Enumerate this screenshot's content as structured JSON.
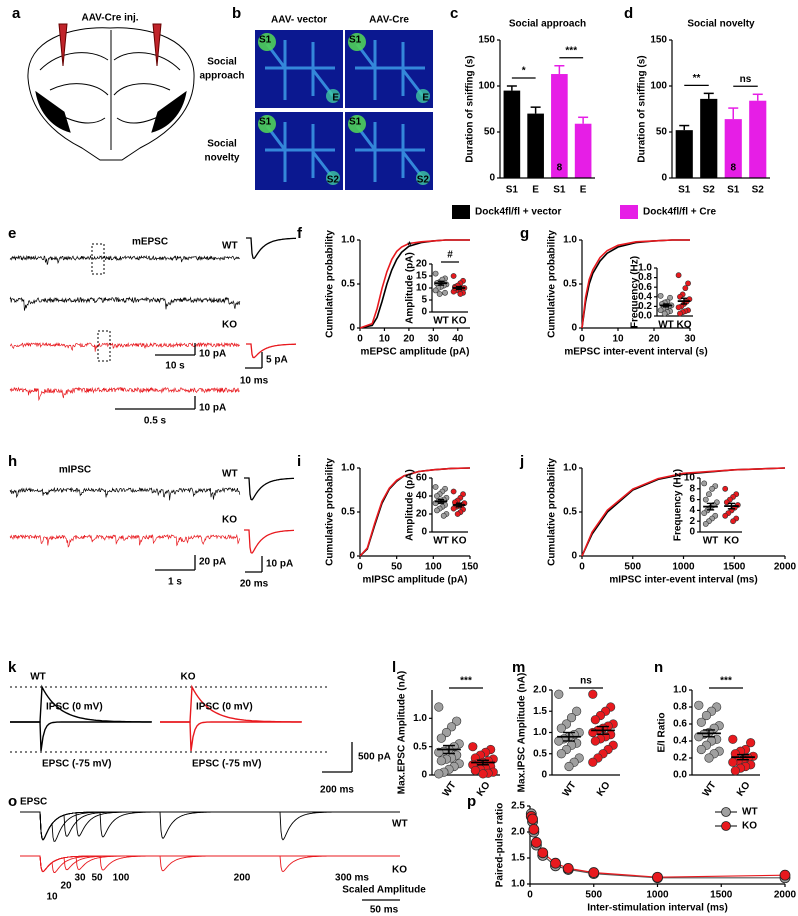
{
  "panel_labels": [
    "a",
    "b",
    "c",
    "d",
    "e",
    "f",
    "g",
    "h",
    "i",
    "j",
    "k",
    "l",
    "m",
    "n",
    "o",
    "p"
  ],
  "schematic": {
    "injection_label": "AAV-Cre inj."
  },
  "heatmaps": {
    "columns": [
      "AAV- vector",
      "AAV-Cre"
    ],
    "rows": [
      [
        "Social",
        "approach"
      ],
      [
        "Social",
        "novelty"
      ]
    ],
    "tags": [
      [
        [
          "S1",
          "E"
        ],
        [
          "S1",
          "E"
        ]
      ],
      [
        [
          "S1",
          "S2"
        ],
        [
          "S1",
          "S2"
        ]
      ]
    ]
  },
  "traces": {
    "mepsc": {
      "event": "mEPSC",
      "wt": "WT",
      "ko": "KO",
      "scale1": [
        "10 pA",
        "10 s"
      ],
      "scale2": [
        "10 pA",
        "0.5 s"
      ],
      "avg_scale": [
        "5 pA",
        "10 ms"
      ]
    },
    "mipsc": {
      "event": "mIPSC",
      "wt": "WT",
      "ko": "KO",
      "scale": [
        "20 pA",
        "1 s"
      ],
      "avg_scale": [
        "10 pA",
        "20 ms"
      ]
    },
    "evoked": {
      "wt": "WT",
      "ko": "KO",
      "ipsc": "IPSC (0 mV)",
      "epsc": "EPSC (-75 mV)",
      "scale": [
        "500 pA",
        "200 ms"
      ]
    },
    "ppr": {
      "event": "EPSC",
      "wt": "WT",
      "ko": "KO",
      "intervals": [
        "10",
        "20",
        "30",
        "50",
        "100",
        "200",
        "300 ms"
      ],
      "scale": [
        "Scaled Amplitude",
        "50 ms"
      ]
    }
  },
  "chart_data": [
    {
      "type": "bar",
      "title": "Social approach",
      "ylabel": "Duration of sniffing (s)",
      "categories": [
        "S1",
        "E",
        "S1",
        "E"
      ],
      "series": [
        {
          "name": "Dock4fl/fl + vector",
          "color": "#000000",
          "values": [
            95,
            70,
            null,
            null
          ],
          "errors": [
            5,
            7,
            null,
            null
          ]
        },
        {
          "name": "Dock4fl/fl + Cre",
          "color": "#e61ee6",
          "values": [
            null,
            null,
            113,
            59
          ],
          "errors": [
            null,
            null,
            9,
            7
          ]
        }
      ],
      "n_labels": [
        "11",
        null,
        "8",
        null
      ],
      "significance": [
        "*",
        "***"
      ],
      "ylim": [
        0,
        150
      ],
      "yticks": [
        0,
        50,
        100,
        150
      ]
    },
    {
      "type": "bar",
      "title": "Social novelty",
      "ylabel": "Duration of sniffing (s)",
      "categories": [
        "S1",
        "S2",
        "S1",
        "S2"
      ],
      "series": [
        {
          "color": "#000000",
          "values": [
            52,
            86,
            null,
            null
          ],
          "errors": [
            5,
            6,
            null,
            null
          ]
        },
        {
          "color": "#e61ee6",
          "values": [
            null,
            null,
            64,
            84
          ],
          "errors": [
            null,
            null,
            12,
            7
          ]
        }
      ],
      "n_labels": [
        "11",
        null,
        "8",
        null
      ],
      "significance": [
        "**",
        "ns"
      ],
      "ylim": [
        0,
        150
      ],
      "yticks": [
        0,
        50,
        100,
        150
      ]
    },
    {
      "type": "cdf",
      "ylabel": "Cumulative probability",
      "xlabel": "mEPSC amplitude (pA)",
      "x": [
        0,
        5,
        7,
        9,
        11,
        13,
        15,
        17,
        20,
        25,
        30,
        35,
        40,
        45
      ],
      "series": [
        {
          "color": "#000000",
          "values": [
            0,
            0.03,
            0.12,
            0.3,
            0.5,
            0.66,
            0.78,
            0.86,
            0.93,
            0.97,
            0.99,
            1,
            1,
            1
          ]
        },
        {
          "color": "#e8191e",
          "values": [
            0,
            0.05,
            0.22,
            0.45,
            0.64,
            0.78,
            0.87,
            0.92,
            0.96,
            0.98,
            0.99,
            1,
            1,
            1
          ]
        }
      ],
      "xlim": [
        0,
        45
      ],
      "xticks": [
        0,
        10,
        20,
        30,
        40
      ],
      "ylim": [
        0,
        1
      ],
      "yticks": [
        0,
        0.5,
        {
          "value": 1,
          "label": "1.0"
        }
      ],
      "annotation": "*",
      "inset": {
        "type": "strip",
        "ylabel": "Amplitude (pA)",
        "categories": [
          "WT",
          "KO"
        ],
        "ylim": [
          0,
          20
        ],
        "yticks": [
          0,
          5,
          10,
          15,
          20
        ],
        "significance": "#",
        "groups": [
          {
            "color": "#a0a0a0",
            "values": [
              16,
              14,
              13,
              12.5,
              12,
              11.5,
              11,
              10.5,
              10,
              9,
              8,
              13.5,
              7.5,
              12
            ],
            "mean": 12,
            "sem": 0.8
          },
          {
            "color": "#e8191e",
            "values": [
              15,
              13,
              12,
              11,
              10.5,
              10,
              10,
              9.5,
              9,
              8.5,
              8,
              7.5,
              11,
              10
            ],
            "mean": 10,
            "sem": 0.6
          }
        ]
      }
    },
    {
      "type": "cdf",
      "ylabel": "Cumulative probability",
      "xlabel": "mEPSC inter-event interval (s)",
      "x": [
        0,
        1,
        2,
        3,
        5,
        7,
        10,
        15,
        20,
        25,
        30
      ],
      "series": [
        {
          "color": "#000000",
          "values": [
            0,
            0.3,
            0.5,
            0.62,
            0.76,
            0.85,
            0.92,
            0.97,
            0.99,
            1,
            1
          ]
        },
        {
          "color": "#e8191e",
          "values": [
            0,
            0.35,
            0.55,
            0.66,
            0.8,
            0.88,
            0.94,
            0.98,
            0.99,
            1,
            1
          ]
        }
      ],
      "xlim": [
        0,
        30
      ],
      "xticks": [
        0,
        10,
        20,
        30
      ],
      "ylim": [
        0,
        1
      ],
      "yticks": [
        0,
        0.5,
        {
          "value": 1,
          "label": "1.0"
        }
      ],
      "inset": {
        "type": "strip",
        "ylabel": "Frequency (Hz)",
        "categories": [
          "WT",
          "KO"
        ],
        "ylim": [
          0,
          1
        ],
        "yticks": [
          {
            "value": 0,
            "label": "0.0"
          },
          0.2,
          0.4,
          0.6,
          0.8,
          {
            "value": 1,
            "label": "1.0"
          }
        ],
        "groups": [
          {
            "color": "#a0a0a0",
            "values": [
              0.42,
              0.38,
              0.3,
              0.28,
              0.25,
              0.22,
              0.2,
              0.18,
              0.15,
              0.12,
              0.1,
              0.08,
              0.05
            ],
            "mean": 0.22,
            "sem": 0.03
          },
          {
            "color": "#e8191e",
            "values": [
              0.85,
              0.68,
              0.58,
              0.45,
              0.4,
              0.35,
              0.3,
              0.25,
              0.2,
              0.18,
              0.12,
              0.1,
              0.08,
              0.05
            ],
            "mean": 0.31,
            "sem": 0.06
          }
        ]
      }
    },
    {
      "type": "cdf",
      "ylabel": "Cumulative probability",
      "xlabel": "mIPSC amplitude (pA)",
      "x": [
        0,
        10,
        20,
        30,
        40,
        50,
        60,
        80,
        100,
        125,
        150
      ],
      "series": [
        {
          "color": "#000000",
          "values": [
            0,
            0.08,
            0.35,
            0.6,
            0.76,
            0.85,
            0.91,
            0.96,
            0.98,
            0.995,
            1
          ]
        },
        {
          "color": "#e8191e",
          "values": [
            0,
            0.09,
            0.37,
            0.62,
            0.77,
            0.86,
            0.91,
            0.96,
            0.98,
            0.995,
            1
          ]
        }
      ],
      "xlim": [
        0,
        150
      ],
      "xticks": [
        0,
        50,
        100,
        150
      ],
      "ylim": [
        0,
        1
      ],
      "yticks": [
        0,
        0.5,
        {
          "value": 1,
          "label": "1.0"
        }
      ],
      "inset": {
        "type": "strip",
        "ylabel": "Amplitude (pA)",
        "categories": [
          "WT",
          "KO"
        ],
        "ylim": [
          0,
          60
        ],
        "yticks": [
          0,
          20,
          40,
          60
        ],
        "groups": [
          {
            "color": "#a0a0a0",
            "values": [
              50,
              48,
              45,
              42,
              40,
              38,
              36,
              35,
              34,
              32,
              30,
              28,
              26,
              24,
              20,
              18
            ],
            "mean": 34,
            "sem": 2
          },
          {
            "color": "#e8191e",
            "values": [
              45,
              42,
              38,
              35,
              33,
              32,
              30,
              29,
              28,
              26,
              25,
              22,
              20
            ],
            "mean": 30,
            "sem": 2
          }
        ]
      }
    },
    {
      "type": "cdf",
      "ylabel": "Cumulative probability",
      "xlabel": "mIPSC inter-event interval (ms)",
      "x": [
        0,
        100,
        250,
        500,
        750,
        1000,
        1500,
        2000
      ],
      "series": [
        {
          "color": "#000000",
          "values": [
            0,
            0.25,
            0.5,
            0.75,
            0.87,
            0.93,
            0.98,
            1
          ]
        },
        {
          "color": "#e8191e",
          "values": [
            0,
            0.27,
            0.52,
            0.76,
            0.88,
            0.94,
            0.98,
            1
          ]
        }
      ],
      "xlim": [
        0,
        2000
      ],
      "xticks": [
        0,
        500,
        1000,
        1500,
        2000
      ],
      "ylim": [
        0,
        1
      ],
      "yticks": [
        0,
        0.5,
        {
          "value": 1,
          "label": "1.0"
        }
      ],
      "inset": {
        "type": "strip",
        "ylabel": "Frequency (Hz)",
        "categories": [
          "WT",
          "KO"
        ],
        "ylim": [
          0,
          10
        ],
        "yticks": [
          0,
          2,
          4,
          6,
          8,
          10
        ],
        "groups": [
          {
            "color": "#a0a0a0",
            "values": [
              9,
              8.5,
              8,
              7,
              6,
              5.5,
              5,
              4.5,
              4,
              3.5,
              3,
              2.5,
              2,
              1.5
            ],
            "mean": 4.7,
            "sem": 0.6
          },
          {
            "color": "#e8191e",
            "values": [
              8,
              7,
              6.5,
              6,
              5.5,
              5,
              4.5,
              4,
              3.5,
              3,
              2.5,
              2
            ],
            "mean": 4.8,
            "sem": 0.5
          }
        ]
      }
    },
    {
      "type": "strip",
      "ylabel": "Max.EPSC Amplitude (nA)",
      "categories": [
        "WT",
        "KO"
      ],
      "ylim": [
        0,
        1.5
      ],
      "yticks": [
        0,
        0.5,
        {
          "value": 1,
          "label": "1.0"
        }
      ],
      "significance": "***",
      "groups": [
        {
          "color": "#a0a0a0",
          "values": [
            1.2,
            0.95,
            0.85,
            0.75,
            0.65,
            0.55,
            0.5,
            0.45,
            0.42,
            0.4,
            0.35,
            0.3,
            0.28,
            0.25,
            0.2,
            0.15,
            0.1,
            0.05,
            0.02
          ],
          "mean": 0.45,
          "sem": 0.07
        },
        {
          "color": "#e8191e",
          "values": [
            0.5,
            0.45,
            0.4,
            0.35,
            0.3,
            0.28,
            0.25,
            0.22,
            0.2,
            0.18,
            0.15,
            0.12,
            0.1,
            0.08,
            0.05,
            0.03,
            0.02
          ],
          "mean": 0.22,
          "sem": 0.04
        }
      ]
    },
    {
      "type": "strip",
      "ylabel": "Max.IPSC Amplitude (nA)",
      "categories": [
        "WT",
        "KO"
      ],
      "ylim": [
        0,
        2
      ],
      "yticks": [
        0,
        0.5,
        {
          "value": 1,
          "label": "1.0"
        },
        1.5,
        {
          "value": 2,
          "label": "2.0"
        }
      ],
      "significance": "ns",
      "groups": [
        {
          "color": "#a0a0a0",
          "values": [
            1.9,
            1.5,
            1.35,
            1.2,
            1.1,
            1.0,
            0.95,
            0.9,
            0.85,
            0.8,
            0.75,
            0.7,
            0.6,
            0.5,
            0.4,
            0.3,
            0.2
          ],
          "mean": 0.9,
          "sem": 0.1
        },
        {
          "color": "#e8191e",
          "values": [
            1.9,
            1.6,
            1.5,
            1.4,
            1.3,
            1.2,
            1.15,
            1.1,
            1.05,
            1.0,
            0.95,
            0.9,
            0.85,
            0.8,
            0.7,
            0.6,
            0.5,
            0.4,
            0.3
          ],
          "mean": 1.05,
          "sem": 0.09
        }
      ]
    },
    {
      "type": "strip",
      "ylabel": "E/I Ratio",
      "categories": [
        "WT",
        "KO"
      ],
      "ylim": [
        0,
        1
      ],
      "yticks": [
        {
          "value": 0,
          "label": "0.0"
        },
        0.2,
        0.4,
        0.6,
        0.8,
        {
          "value": 1,
          "label": "1.0"
        }
      ],
      "significance": "***",
      "groups": [
        {
          "color": "#a0a0a0",
          "values": [
            0.82,
            0.8,
            0.75,
            0.7,
            0.62,
            0.58,
            0.55,
            0.5,
            0.48,
            0.45,
            0.42,
            0.4,
            0.35,
            0.3,
            0.28,
            0.25,
            0.2
          ],
          "mean": 0.49,
          "sem": 0.04
        },
        {
          "color": "#e8191e",
          "values": [
            0.42,
            0.38,
            0.3,
            0.28,
            0.25,
            0.22,
            0.2,
            0.18,
            0.16,
            0.15,
            0.12,
            0.1,
            0.08,
            0.05
          ],
          "mean": 0.21,
          "sem": 0.03
        }
      ]
    },
    {
      "type": "line",
      "ylabel": "Paired-pulse ratio",
      "xlabel": "Inter-stimulation interval (ms)",
      "x": [
        10,
        20,
        30,
        50,
        100,
        200,
        300,
        500,
        1000,
        2000
      ],
      "series": [
        {
          "name": "WT",
          "color": "#a0a0a0",
          "values": [
            2.35,
            2.2,
            2.0,
            1.75,
            1.55,
            1.35,
            1.28,
            1.2,
            1.12,
            1.12
          ]
        },
        {
          "name": "KO",
          "color": "#e8191e",
          "values": [
            2.3,
            2.25,
            2.05,
            1.8,
            1.6,
            1.4,
            1.3,
            1.22,
            1.13,
            1.17
          ]
        }
      ],
      "xlim": [
        0,
        2000
      ],
      "xticks": [
        0,
        500,
        1000,
        1500,
        2000
      ],
      "ylim": [
        1,
        2.5
      ],
      "yticks": [
        {
          "value": 1,
          "label": "1.0"
        },
        1.5,
        {
          "value": 2,
          "label": "2.0"
        },
        2.5
      ],
      "legend": "upper right"
    }
  ]
}
